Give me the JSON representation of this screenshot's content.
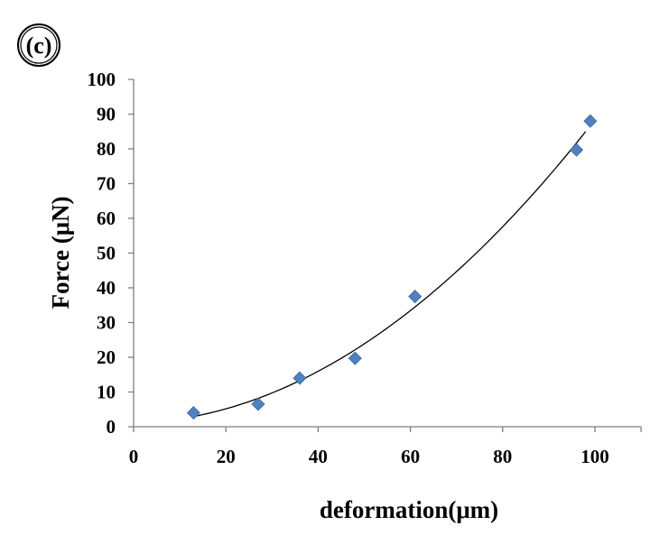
{
  "chart_data": {
    "type": "scatter",
    "panel_label": "(c)",
    "xlabel": "deformation(μm)",
    "ylabel": "Force (μN)",
    "xlim": [
      0,
      110
    ],
    "ylim": [
      0,
      100
    ],
    "x_ticks": [
      0,
      20,
      40,
      60,
      80,
      100
    ],
    "y_ticks": [
      0,
      10,
      20,
      30,
      40,
      50,
      60,
      70,
      80,
      90,
      100
    ],
    "grid": false,
    "legend": "none",
    "marker": "diamond",
    "marker_color": "#4f81bd",
    "trendline": {
      "type": "polynomial",
      "order": 2,
      "color": "#000000",
      "from_x": 13,
      "to_x": 98
    },
    "series": [
      {
        "x": [
          13,
          27,
          36,
          48,
          61,
          96,
          99
        ],
        "y": [
          4,
          6.5,
          14,
          19.7,
          37.5,
          79.7,
          88
        ]
      }
    ]
  }
}
